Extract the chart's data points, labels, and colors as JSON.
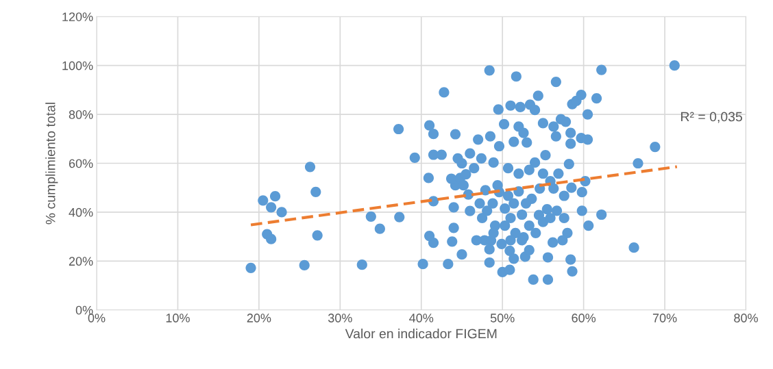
{
  "chart_data": {
    "type": "scatter",
    "xlabel": "Valor en indicador FIGEM",
    "ylabel": "% cumplimiento total",
    "xlim": [
      0,
      80
    ],
    "ylim": [
      0,
      120
    ],
    "xticks": [
      {
        "value": 0,
        "label": "0%"
      },
      {
        "value": 10,
        "label": "10%"
      },
      {
        "value": 20,
        "label": "20%"
      },
      {
        "value": 30,
        "label": "30%"
      },
      {
        "value": 40,
        "label": "40%"
      },
      {
        "value": 50,
        "label": "50%"
      },
      {
        "value": 60,
        "label": "60%"
      },
      {
        "value": 70,
        "label": "70%"
      },
      {
        "value": 80,
        "label": "80%"
      }
    ],
    "yticks": [
      {
        "value": 0,
        "label": "0%"
      },
      {
        "value": 20,
        "label": "20%"
      },
      {
        "value": 40,
        "label": "40%"
      },
      {
        "value": 60,
        "label": "60%"
      },
      {
        "value": 80,
        "label": "80%"
      },
      {
        "value": 100,
        "label": "100%"
      },
      {
        "value": 120,
        "label": "120%"
      }
    ],
    "grid": true,
    "legend": false,
    "annotations": [
      "R² = 0,035"
    ],
    "series": [
      {
        "marker": "circle",
        "color": "#5b9bd5",
        "x": [
          19.0,
          20.5,
          21.5,
          22,
          22.8,
          21,
          21.5,
          25.6,
          26.3,
          27,
          27.2,
          32.7,
          33.8,
          34.9,
          37.2,
          37.3,
          39.2,
          40.2,
          42.8,
          40.9,
          41,
          41.5,
          41.5,
          41.5,
          41.5,
          41,
          43.3,
          43.8,
          44,
          44,
          44.2,
          43.7,
          44.2,
          42.5,
          44.5,
          45,
          44.8,
          45.5,
          45.2,
          45,
          46,
          45.8,
          46,
          46.5,
          47,
          47.4,
          47.8,
          48.4,
          48.4,
          47.9,
          48.8,
          48.6,
          48.4,
          48.5,
          48.9,
          49.1,
          49.6,
          49.5,
          49.4,
          50,
          50.2,
          50.3,
          50.7,
          50.9,
          51,
          51.4,
          50.9,
          51.7,
          52,
          51.4,
          52.2,
          52,
          52.6,
          52.6,
          53,
          52.8,
          53.3,
          53.4,
          54,
          54.4,
          53.8,
          53.6,
          54.5,
          54,
          55,
          55.3,
          55.5,
          55.6,
          55.6,
          56.2,
          56.6,
          56.6,
          56.3,
          57.2,
          57.8,
          58.4,
          58.4,
          58.2,
          58.5,
          58.4,
          58.6,
          58.6,
          59.1,
          59.7,
          59.7,
          59.8,
          59.8,
          60.2,
          60.5,
          60.5,
          60.6,
          61.6,
          62.2,
          62.2,
          66.2,
          66.7,
          68.8,
          71.2,
          50.3,
          51,
          52.4,
          53.3,
          54.1,
          55,
          55.9,
          56.7,
          57.6,
          58,
          51.6,
          52.9,
          54.6,
          55.9,
          56.9,
          57.6,
          57.4,
          50.7,
          49.6,
          52,
          53.3,
          55,
          56.3,
          52.4,
          51.4,
          47.5,
          47.2,
          48.1,
          46.8,
          48.9,
          49.9,
          51
        ],
        "values": [
          17.2,
          44.8,
          42,
          46.5,
          40,
          31,
          29,
          18.3,
          58.5,
          48.3,
          30.5,
          18.5,
          38.2,
          33.2,
          74,
          38,
          62.3,
          18.8,
          89,
          54,
          75.5,
          72,
          63.5,
          44.5,
          27.5,
          30.3,
          18.8,
          28,
          33.6,
          42,
          51,
          53.7,
          71.9,
          63.5,
          62,
          60,
          54,
          55.5,
          51,
          22.7,
          64,
          47.2,
          40.5,
          58,
          69.7,
          62,
          28.5,
          24.8,
          98,
          49,
          43.6,
          28.4,
          19.4,
          71,
          60.3,
          34.5,
          67,
          82,
          51,
          15.5,
          76,
          41.5,
          58,
          24.2,
          83.6,
          68.8,
          16.4,
          95.5,
          75,
          21,
          83,
          48.5,
          72.4,
          29.7,
          68.5,
          21.8,
          24.5,
          84,
          81.8,
          87.6,
          12.4,
          45.5,
          38.8,
          60.3,
          76.4,
          63.3,
          41.2,
          12.4,
          21.5,
          27.6,
          93.3,
          71,
          75,
          78,
          77,
          72.4,
          68,
          59.7,
          50,
          20.6,
          15.8,
          84.2,
          85.5,
          88,
          70.3,
          48.2,
          40.6,
          52.7,
          69.7,
          80,
          34.5,
          86.6,
          98.2,
          39,
          25.5,
          60,
          66.7,
          100,
          34.5,
          37.6,
          39,
          34.5,
          31.5,
          36,
          37.6,
          40.6,
          37.6,
          31.5,
          31.5,
          43.6,
          49.7,
          52.7,
          55.8,
          46.7,
          28.5,
          46.7,
          48.2,
          55.8,
          57.3,
          55.8,
          49.7,
          28.5,
          43.6,
          37.6,
          43.6,
          40.6,
          28.5,
          31.5,
          27,
          28.5
        ]
      },
      {
        "type": "line",
        "marker": "none",
        "color": "#ed7d31",
        "line_style": "dashed",
        "x": [
          19.0,
          71.5
        ],
        "values": [
          34.8,
          58.6
        ]
      }
    ]
  }
}
